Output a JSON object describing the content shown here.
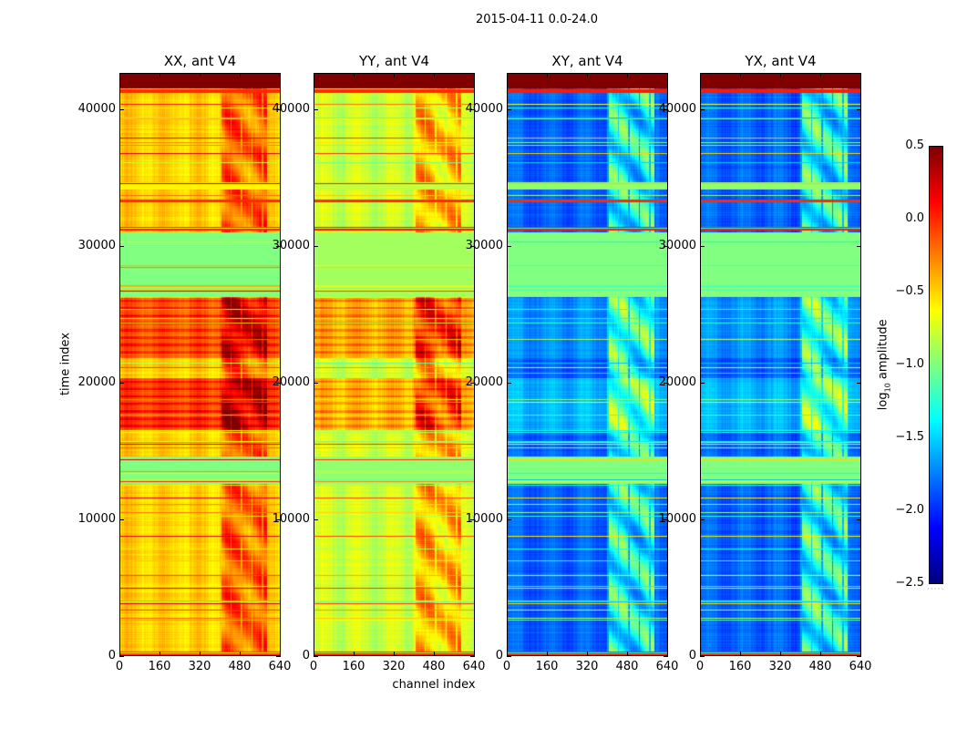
{
  "chart_data": {
    "type": "heatmap",
    "title": "2015-04-11 0.0-24.0",
    "xlabel": "channel index",
    "ylabel": "time index",
    "xlim": [
      0,
      640
    ],
    "ylim": [
      0,
      42667
    ],
    "xticks": [
      0,
      160,
      320,
      480,
      640
    ],
    "xtick_labels": [
      "0",
      "160",
      "320",
      "480",
      "640"
    ],
    "yticks": [
      0,
      10000,
      20000,
      30000,
      40000
    ],
    "ytick_labels": [
      "0",
      "10000",
      "20000",
      "30000",
      "40000"
    ],
    "colormap": "jet",
    "colorbar": {
      "label_main": "log",
      "label_sub": "10",
      "label_rest": " amplitude",
      "range": [
        -2.5,
        0.5
      ],
      "ticks": [
        0.5,
        0.0,
        -0.5,
        -1.0,
        -1.5,
        -2.0,
        -2.5
      ],
      "tick_labels": [
        "0.5",
        "0.0",
        "−0.5",
        "−1.0",
        "−1.5",
        "−2.0",
        "−2.5"
      ],
      "placement": "right"
    },
    "panels": [
      {
        "title": "XX, ant V4",
        "base": -0.5,
        "rfi_boost": 0.45
      },
      {
        "title": "YY, ant V4",
        "base": -0.78,
        "rfi_boost": 0.5
      },
      {
        "title": "XY, ant V4",
        "base": -1.85,
        "rfi_boost": 0.75
      },
      {
        "title": "YX, ant V4",
        "base": -1.85,
        "rfi_boost": 0.75
      }
    ],
    "rfi_channels": [
      400,
      590
    ],
    "bands": [
      {
        "t": [
          41600,
          42700
        ],
        "values": [
          0.5,
          0.5,
          0.5,
          0.5
        ],
        "flat": true
      },
      {
        "t": [
          41250,
          41500
        ],
        "values": [
          0.0,
          0.0,
          0.05,
          0.05
        ],
        "flat": true
      },
      {
        "t": [
          34200,
          34700
        ],
        "values": [
          -0.6,
          -0.8,
          -0.95,
          -0.95
        ],
        "flat": true
      },
      {
        "t": [
          33250,
          33450
        ],
        "values": [
          0.0,
          0.0,
          0.0,
          0.0
        ],
        "flat": true
      },
      {
        "t": [
          31150,
          31400
        ],
        "values": [
          0.05,
          0.05,
          0.05,
          0.05
        ],
        "flat": true
      },
      {
        "t": [
          26300,
          31000
        ],
        "values": [
          -1.0,
          -0.9,
          -1.0,
          -1.0
        ],
        "flat": true
      },
      {
        "t": [
          21800,
          26200
        ],
        "values": [
          -0.15,
          -0.4,
          -1.7,
          -1.7
        ],
        "flat": false
      },
      {
        "t": [
          16500,
          20300
        ],
        "values": [
          -0.08,
          -0.45,
          -1.6,
          -1.6
        ],
        "flat": false
      },
      {
        "t": [
          12600,
          14600
        ],
        "values": [
          -1.0,
          -0.95,
          -1.0,
          -1.0
        ],
        "flat": true
      },
      {
        "t": [
          0,
          300
        ],
        "values": [
          0.0,
          0.0,
          0.0,
          0.0
        ],
        "flat": true
      }
    ]
  }
}
